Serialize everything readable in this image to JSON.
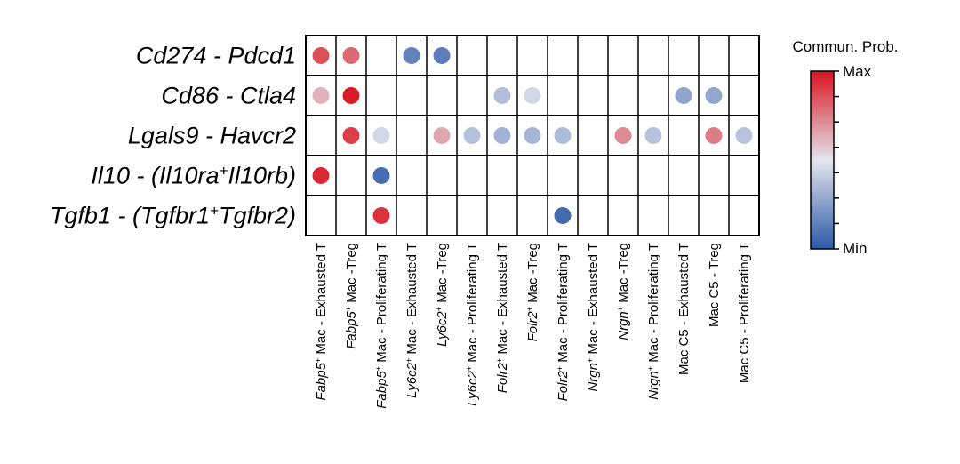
{
  "chart_data": {
    "type": "heatmap",
    "rows": [
      [
        {
          "t": "Cd274",
          "i": true
        },
        {
          "t": " - ",
          "i": true
        },
        {
          "t": "Pdcd1",
          "i": true
        }
      ],
      [
        {
          "t": "Cd86",
          "i": true
        },
        {
          "t": " - ",
          "i": true
        },
        {
          "t": "Ctla4",
          "i": true
        }
      ],
      [
        {
          "t": "Lgals9",
          "i": true
        },
        {
          "t": " - ",
          "i": true
        },
        {
          "t": "Havcr2",
          "i": true
        }
      ],
      [
        {
          "t": "Il10",
          "i": true
        },
        {
          "t": " - (",
          "i": true
        },
        {
          "t": "Il10ra",
          "i": true
        },
        {
          "t": "+",
          "i": true,
          "sup": true
        },
        {
          "t": "Il10rb",
          "i": true
        },
        {
          "t": ")",
          "i": true
        }
      ],
      [
        {
          "t": "Tgfb1",
          "i": true
        },
        {
          "t": " - (",
          "i": true
        },
        {
          "t": "Tgfbr1",
          "i": true
        },
        {
          "t": "+",
          "i": true,
          "sup": true
        },
        {
          "t": "Tgfbr2",
          "i": true
        },
        {
          "t": ")",
          "i": true
        }
      ]
    ],
    "columns": [
      [
        {
          "t": "Fabp5",
          "i": true
        },
        {
          "t": "+",
          "sup": true
        },
        {
          "t": " Mac - Exhausted T"
        }
      ],
      [
        {
          "t": "Fabp5",
          "i": true
        },
        {
          "t": "+",
          "sup": true
        },
        {
          "t": " Mac -Treg"
        }
      ],
      [
        {
          "t": "Fabp5",
          "i": true
        },
        {
          "t": "+",
          "sup": true
        },
        {
          "t": " Mac - Proliferating T"
        }
      ],
      [
        {
          "t": "Ly6c2",
          "i": true
        },
        {
          "t": "+",
          "sup": true
        },
        {
          "t": " Mac - Exhausted T"
        }
      ],
      [
        {
          "t": "Ly6c2",
          "i": true
        },
        {
          "t": "+",
          "sup": true
        },
        {
          "t": " Mac -Treg"
        }
      ],
      [
        {
          "t": "Ly6c2",
          "i": true
        },
        {
          "t": "+",
          "sup": true
        },
        {
          "t": " Mac - Proliferating T"
        }
      ],
      [
        {
          "t": "Folr2",
          "i": true
        },
        {
          "t": "+",
          "sup": true
        },
        {
          "t": " Mac - Exhausted T"
        }
      ],
      [
        {
          "t": "Folr2",
          "i": true
        },
        {
          "t": "+",
          "sup": true
        },
        {
          "t": " Mac -Treg"
        }
      ],
      [
        {
          "t": "Folr2",
          "i": true
        },
        {
          "t": "+",
          "sup": true
        },
        {
          "t": " Mac - Proliferating T"
        }
      ],
      [
        {
          "t": "Nrgn",
          "i": true
        },
        {
          "t": "+",
          "sup": true
        },
        {
          "t": " Mac - Exhausted T"
        }
      ],
      [
        {
          "t": "Nrgn",
          "i": true
        },
        {
          "t": "+",
          "sup": true
        },
        {
          "t": " Mac -Treg"
        }
      ],
      [
        {
          "t": "Nrgn",
          "i": true
        },
        {
          "t": "+",
          "sup": true
        },
        {
          "t": " Mac - Proliferating T"
        }
      ],
      [
        {
          "t": "Mac C5 - Exhausted T"
        }
      ],
      [
        {
          "t": "Mac C5 - Treg"
        }
      ],
      [
        {
          "t": "Mac C5 - Proliferating T"
        }
      ]
    ],
    "values": [
      [
        0.86,
        0.8,
        null,
        0.15,
        0.13,
        null,
        null,
        null,
        null,
        null,
        null,
        null,
        null,
        null,
        null
      ],
      [
        0.62,
        0.98,
        null,
        null,
        null,
        null,
        0.36,
        0.45,
        null,
        null,
        null,
        null,
        0.27,
        0.28,
        null
      ],
      [
        null,
        0.9,
        0.45,
        null,
        0.65,
        0.37,
        0.32,
        0.33,
        0.35,
        null,
        0.72,
        0.38,
        null,
        0.75,
        0.38
      ],
      [
        0.95,
        null,
        0.07,
        null,
        null,
        null,
        null,
        null,
        null,
        null,
        null,
        null,
        null,
        null,
        null
      ],
      [
        null,
        null,
        0.93,
        null,
        null,
        null,
        null,
        null,
        0.06,
        null,
        null,
        null,
        null,
        null,
        null
      ]
    ],
    "scale": {
      "min": 0,
      "max": 1
    },
    "legend": {
      "title": "Commun. Prob.",
      "max_label": "Max",
      "min_label": "Min",
      "colors": [
        "#2c59a6",
        "#e3e5ee",
        "#d8141f"
      ]
    }
  }
}
